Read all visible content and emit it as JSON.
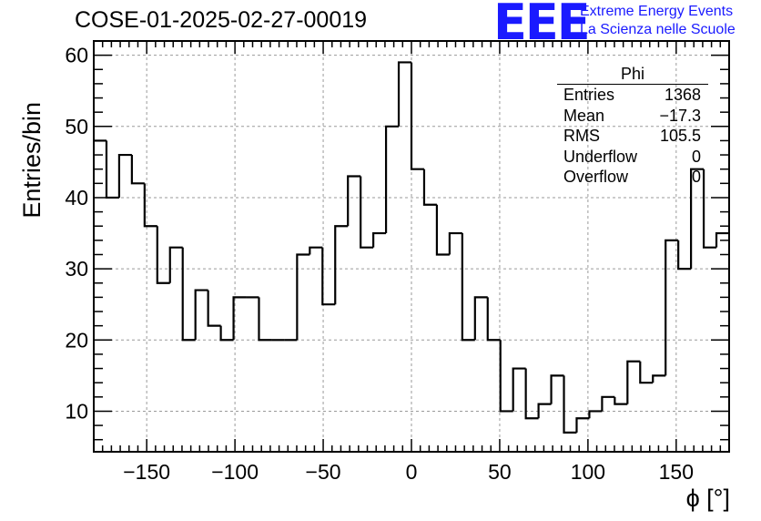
{
  "header": {
    "title": "COSE-01-2025-02-27-00019",
    "logo_mark": "EEE",
    "logo_line1": "Extreme Energy Events",
    "logo_line2": "La Scienza nelle Scuole",
    "brand_color": "#1a1aff"
  },
  "stats": {
    "name": "Phi",
    "rows": [
      {
        "label": "Entries",
        "value": "1368"
      },
      {
        "label": "Mean",
        "value": "−17.3"
      },
      {
        "label": "RMS",
        "value": "105.5"
      },
      {
        "label": "Underflow",
        "value": "0"
      },
      {
        "label": "Overflow",
        "value": "0"
      }
    ]
  },
  "chart_data": {
    "type": "histogram",
    "title": "COSE-01-2025-02-27-00019",
    "xlabel": "ϕ [°]",
    "ylabel": "Entries/bin",
    "xlim": [
      -180,
      180
    ],
    "ylim": [
      4.3,
      62
    ],
    "grid": true,
    "bin_width": 7.2,
    "values": [
      48,
      40,
      46,
      42,
      36,
      28,
      33,
      20,
      27,
      22,
      20,
      26,
      26,
      20,
      20,
      20,
      32,
      33,
      25,
      36,
      43,
      33,
      35,
      50,
      59,
      44,
      39,
      32,
      35,
      20,
      26,
      20,
      10,
      16,
      9,
      11,
      15,
      7,
      9,
      10,
      12,
      11,
      17,
      14,
      15,
      34,
      30,
      44,
      33,
      35
    ],
    "xticks": [
      -150,
      -100,
      -50,
      0,
      50,
      100,
      150
    ],
    "xtick_labels": [
      "−150",
      "−100",
      "−50",
      "0",
      "50",
      "100",
      "150"
    ],
    "yticks": [
      10,
      20,
      30,
      40,
      50,
      60
    ],
    "ytick_labels": [
      "10",
      "20",
      "30",
      "40",
      "50",
      "60"
    ],
    "line_color": "#000000",
    "grid_color": "#9a9a9a"
  }
}
